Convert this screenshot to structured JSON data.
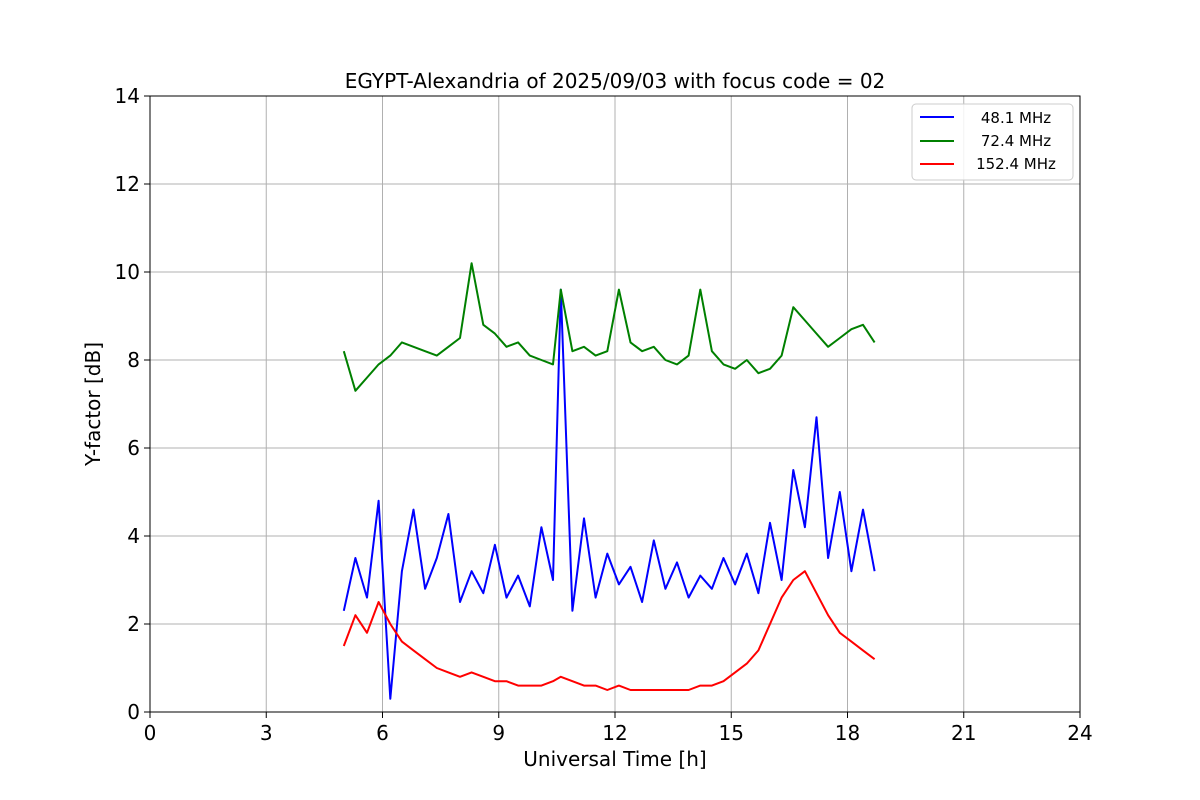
{
  "chart_data": {
    "type": "line",
    "title": "EGYPT-Alexandria of 2025/09/03 with focus code = 02",
    "xlabel": "Universal Time [h]",
    "ylabel": "Y-factor [dB]",
    "xlim": [
      0,
      24
    ],
    "ylim": [
      0,
      14
    ],
    "xticks": [
      0,
      3,
      6,
      9,
      12,
      15,
      18,
      21,
      24
    ],
    "yticks": [
      0,
      2,
      4,
      6,
      8,
      10,
      12,
      14
    ],
    "grid": true,
    "legend_position": "top-right",
    "series": [
      {
        "name": "48.1 MHz",
        "color": "#0000ff",
        "x": [
          5.0,
          5.3,
          5.6,
          5.9,
          6.2,
          6.5,
          6.8,
          7.1,
          7.4,
          7.7,
          8.0,
          8.3,
          8.6,
          8.9,
          9.2,
          9.5,
          9.8,
          10.1,
          10.4,
          10.6,
          10.9,
          11.2,
          11.5,
          11.8,
          12.1,
          12.4,
          12.7,
          13.0,
          13.3,
          13.6,
          13.9,
          14.2,
          14.5,
          14.8,
          15.1,
          15.4,
          15.7,
          16.0,
          16.3,
          16.6,
          16.9,
          17.2,
          17.5,
          17.8,
          18.1,
          18.4,
          18.7
        ],
        "y": [
          2.3,
          3.5,
          2.6,
          4.8,
          0.3,
          3.2,
          4.6,
          2.8,
          3.5,
          4.5,
          2.5,
          3.2,
          2.7,
          3.8,
          2.6,
          3.1,
          2.4,
          4.2,
          3.0,
          9.6,
          2.3,
          4.4,
          2.6,
          3.6,
          2.9,
          3.3,
          2.5,
          3.9,
          2.8,
          3.4,
          2.6,
          3.1,
          2.8,
          3.5,
          2.9,
          3.6,
          2.7,
          4.3,
          3.0,
          5.5,
          4.2,
          6.7,
          3.5,
          5.0,
          3.2,
          4.6,
          3.2
        ]
      },
      {
        "name": "72.4 MHz",
        "color": "#008000",
        "x": [
          5.0,
          5.3,
          5.6,
          5.9,
          6.2,
          6.5,
          6.8,
          7.1,
          7.4,
          7.7,
          8.0,
          8.3,
          8.6,
          8.9,
          9.2,
          9.5,
          9.8,
          10.1,
          10.4,
          10.6,
          10.9,
          11.2,
          11.5,
          11.8,
          12.1,
          12.4,
          12.7,
          13.0,
          13.3,
          13.6,
          13.9,
          14.2,
          14.5,
          14.8,
          15.1,
          15.4,
          15.7,
          16.0,
          16.3,
          16.6,
          16.9,
          17.2,
          17.5,
          17.8,
          18.1,
          18.4,
          18.7
        ],
        "y": [
          8.2,
          7.3,
          7.6,
          7.9,
          8.1,
          8.4,
          8.3,
          8.2,
          8.1,
          8.3,
          8.5,
          10.2,
          8.8,
          8.6,
          8.3,
          8.4,
          8.1,
          8.0,
          7.9,
          9.6,
          8.2,
          8.3,
          8.1,
          8.2,
          9.6,
          8.4,
          8.2,
          8.3,
          8.0,
          7.9,
          8.1,
          9.6,
          8.2,
          7.9,
          7.8,
          8.0,
          7.7,
          7.8,
          8.1,
          9.2,
          8.9,
          8.6,
          8.3,
          8.5,
          8.7,
          8.8,
          8.4
        ]
      },
      {
        "name": "152.4 MHz",
        "color": "#ff0000",
        "x": [
          5.0,
          5.3,
          5.6,
          5.9,
          6.2,
          6.5,
          6.8,
          7.1,
          7.4,
          7.7,
          8.0,
          8.3,
          8.6,
          8.9,
          9.2,
          9.5,
          9.8,
          10.1,
          10.4,
          10.6,
          10.9,
          11.2,
          11.5,
          11.8,
          12.1,
          12.4,
          12.7,
          13.0,
          13.3,
          13.6,
          13.9,
          14.2,
          14.5,
          14.8,
          15.1,
          15.4,
          15.7,
          16.0,
          16.3,
          16.6,
          16.9,
          17.2,
          17.5,
          17.8,
          18.1,
          18.4,
          18.7
        ],
        "y": [
          1.5,
          2.2,
          1.8,
          2.5,
          2.0,
          1.6,
          1.4,
          1.2,
          1.0,
          0.9,
          0.8,
          0.9,
          0.8,
          0.7,
          0.7,
          0.6,
          0.6,
          0.6,
          0.7,
          0.8,
          0.7,
          0.6,
          0.6,
          0.5,
          0.6,
          0.5,
          0.5,
          0.5,
          0.5,
          0.5,
          0.5,
          0.6,
          0.6,
          0.7,
          0.9,
          1.1,
          1.4,
          2.0,
          2.6,
          3.0,
          3.2,
          2.7,
          2.2,
          1.8,
          1.6,
          1.4,
          1.2
        ]
      }
    ]
  }
}
